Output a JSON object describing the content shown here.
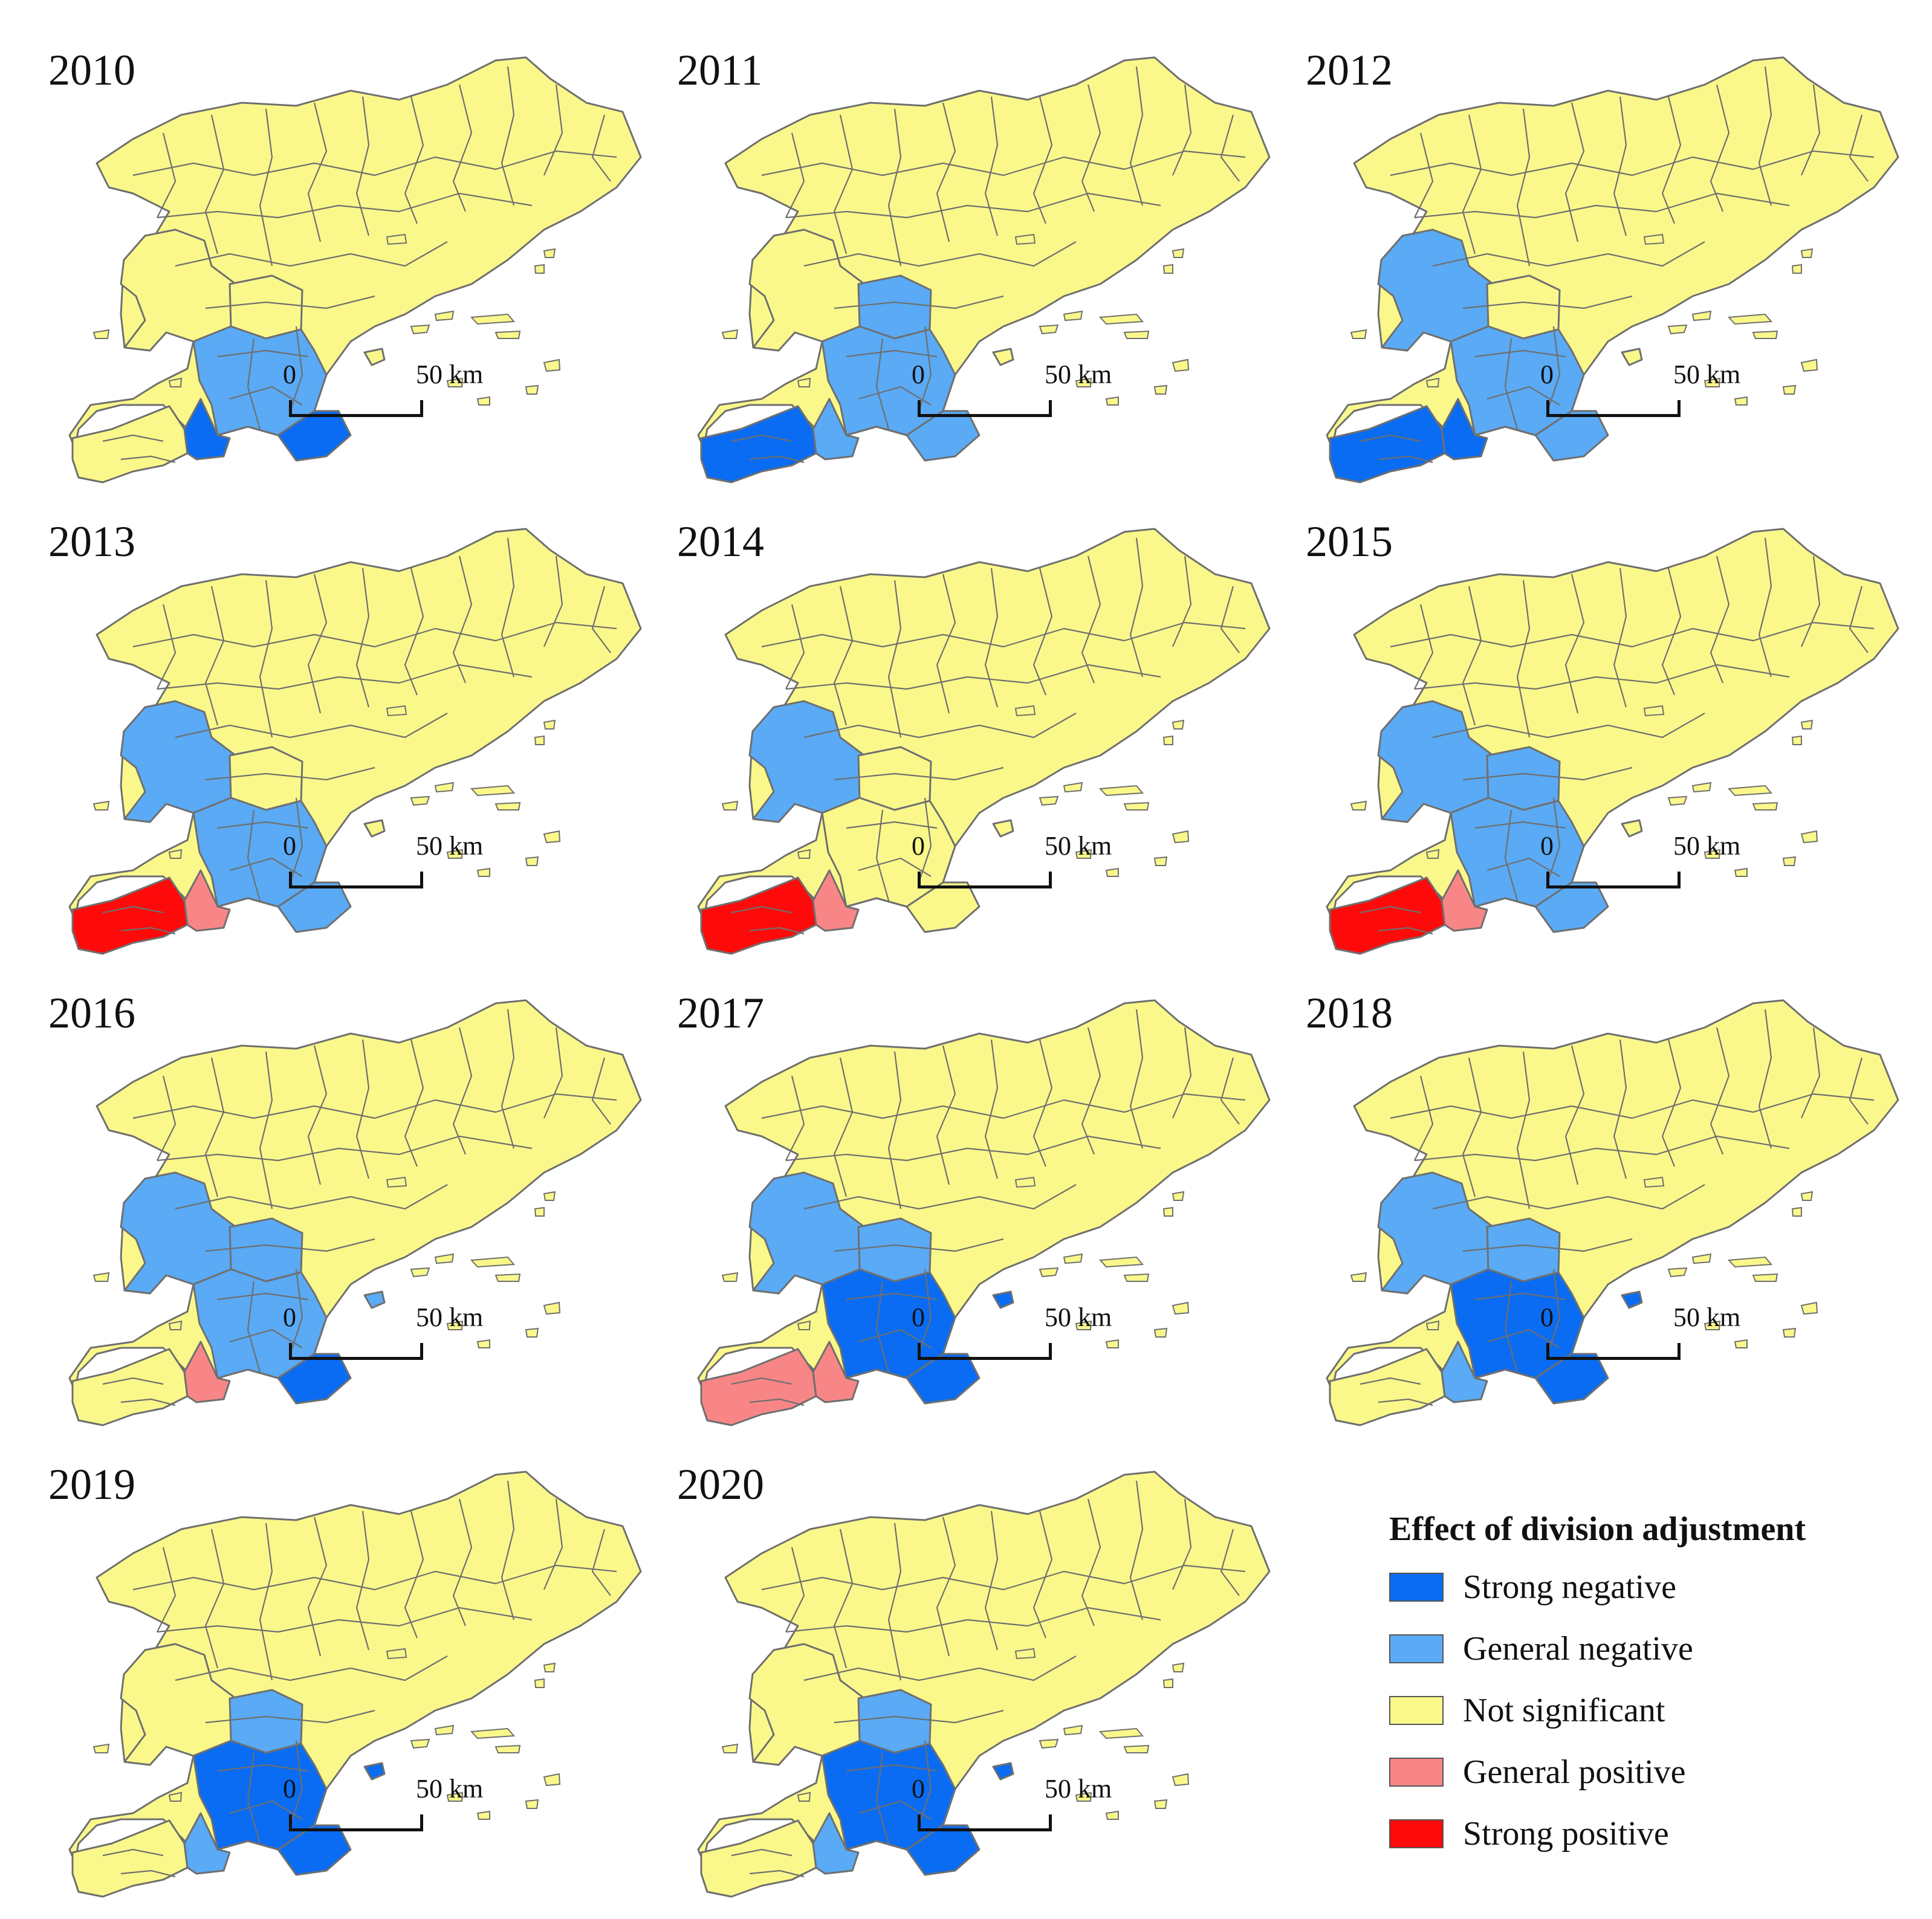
{
  "panels": [
    {
      "year": "2010",
      "zones": {
        "nw": "not_significant",
        "mid": "not_significant",
        "south": "general_negative",
        "se": "strong_negative",
        "sw": "not_significant",
        "swc": "strong_negative",
        "island": "not_significant"
      }
    },
    {
      "year": "2011",
      "zones": {
        "nw": "not_significant",
        "mid": "general_negative",
        "south": "general_negative",
        "se": "general_negative",
        "sw": "strong_negative",
        "swc": "general_negative",
        "island": "not_significant"
      }
    },
    {
      "year": "2012",
      "zones": {
        "nw": "general_negative",
        "mid": "not_significant",
        "south": "general_negative",
        "se": "general_negative",
        "sw": "strong_negative",
        "swc": "strong_negative",
        "island": "not_significant"
      }
    },
    {
      "year": "2013",
      "zones": {
        "nw": "general_negative",
        "mid": "not_significant",
        "south": "general_negative",
        "se": "general_negative",
        "sw": "strong_positive",
        "swc": "general_positive",
        "island": "not_significant"
      }
    },
    {
      "year": "2014",
      "zones": {
        "nw": "general_negative",
        "mid": "not_significant",
        "south": "not_significant",
        "se": "not_significant",
        "sw": "strong_positive",
        "swc": "general_positive",
        "island": "not_significant"
      }
    },
    {
      "year": "2015",
      "zones": {
        "nw": "general_negative",
        "mid": "general_negative",
        "south": "general_negative",
        "se": "general_negative",
        "sw": "strong_positive",
        "swc": "general_positive",
        "island": "not_significant"
      }
    },
    {
      "year": "2016",
      "zones": {
        "nw": "general_negative",
        "mid": "general_negative",
        "south": "general_negative",
        "se": "strong_negative",
        "sw": "not_significant",
        "swc": "general_positive",
        "island": "general_negative"
      }
    },
    {
      "year": "2017",
      "zones": {
        "nw": "general_negative",
        "mid": "general_negative",
        "south": "strong_negative",
        "se": "strong_negative",
        "sw": "general_positive",
        "swc": "general_positive",
        "island": "strong_negative"
      }
    },
    {
      "year": "2018",
      "zones": {
        "nw": "general_negative",
        "mid": "general_negative",
        "south": "strong_negative",
        "se": "strong_negative",
        "sw": "not_significant",
        "swc": "general_negative",
        "island": "strong_negative"
      }
    },
    {
      "year": "2019",
      "zones": {
        "nw": "not_significant",
        "mid": "general_negative",
        "south": "strong_negative",
        "se": "strong_negative",
        "sw": "not_significant",
        "swc": "general_negative",
        "island": "strong_negative"
      }
    },
    {
      "year": "2020",
      "zones": {
        "nw": "not_significant",
        "mid": "general_negative",
        "south": "strong_negative",
        "se": "strong_negative",
        "sw": "not_significant",
        "swc": "general_negative",
        "island": "strong_negative"
      }
    }
  ],
  "scale_bar": {
    "zero": "0",
    "max": "50 km"
  },
  "legend": {
    "title": "Effect of division adjustment",
    "items": [
      {
        "key": "strong_negative",
        "label": "Strong negative",
        "color": "#0a6cf2"
      },
      {
        "key": "general_negative",
        "label": "General negative",
        "color": "#5aaaf5"
      },
      {
        "key": "not_significant",
        "label": "Not significant",
        "color": "#faf88a"
      },
      {
        "key": "general_positive",
        "label": "General positive",
        "color": "#f98686"
      },
      {
        "key": "strong_positive",
        "label": "Strong positive",
        "color": "#ff0a0a"
      }
    ]
  },
  "boundary_color": "#6f6f6f"
}
